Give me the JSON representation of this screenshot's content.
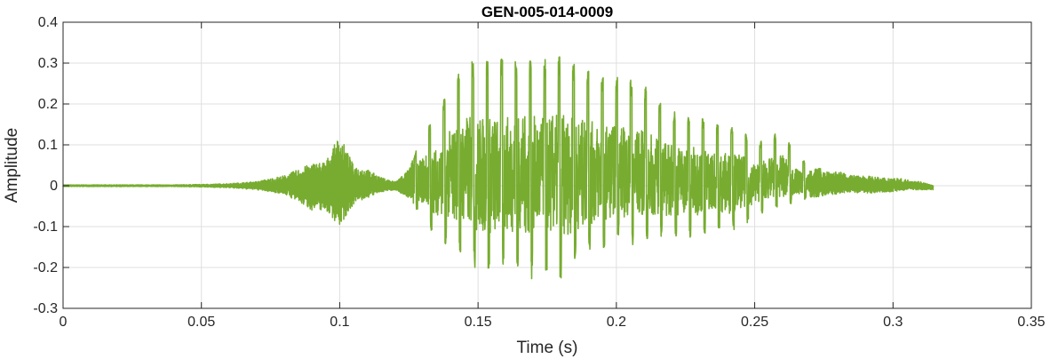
{
  "chart_data": {
    "type": "line",
    "title": "GEN-005-014-0009",
    "xlabel": "Time (s)",
    "ylabel": "Amplitude",
    "xlim": [
      0,
      0.35
    ],
    "ylim": [
      -0.3,
      0.4
    ],
    "xticks": [
      0,
      0.05,
      0.1,
      0.15,
      0.2,
      0.25,
      0.3,
      0.35
    ],
    "xtick_labels": [
      "0",
      "0.05",
      "0.1",
      "0.15",
      "0.2",
      "0.25",
      "0.3",
      "0.35"
    ],
    "yticks": [
      -0.3,
      -0.2,
      -0.1,
      0,
      0.1,
      0.2,
      0.3,
      0.4
    ],
    "ytick_labels": [
      "-0.3",
      "-0.2",
      "-0.1",
      "0",
      "0.1",
      "0.2",
      "0.3",
      "0.4"
    ],
    "grid": true,
    "line_color": "#77ac30",
    "series": [
      {
        "x": [
          0,
          0.01,
          0.02,
          0.03,
          0.04,
          0.05,
          0.06,
          0.07,
          0.08,
          0.085,
          0.09,
          0.095,
          0.1,
          0.105,
          0.11,
          0.115,
          0.12,
          0.125,
          0.13,
          0.135,
          0.14,
          0.145,
          0.15,
          0.155,
          0.16,
          0.165,
          0.17,
          0.175,
          0.18,
          0.185,
          0.19,
          0.195,
          0.2,
          0.205,
          0.21,
          0.215,
          0.22,
          0.225,
          0.23,
          0.235,
          0.24,
          0.245,
          0.25,
          0.255,
          0.26,
          0.265,
          0.27,
          0.275,
          0.28,
          0.285,
          0.29,
          0.295,
          0.3,
          0.305,
          0.31,
          0.3145
        ],
        "upper": [
          0.002,
          0.002,
          0.002,
          0.002,
          0.002,
          0.003,
          0.005,
          0.01,
          0.025,
          0.04,
          0.055,
          0.06,
          0.125,
          0.05,
          0.04,
          0.02,
          0.01,
          0.04,
          0.13,
          0.17,
          0.25,
          0.31,
          0.31,
          0.31,
          0.31,
          0.31,
          0.31,
          0.31,
          0.32,
          0.3,
          0.29,
          0.27,
          0.27,
          0.26,
          0.245,
          0.215,
          0.185,
          0.175,
          0.17,
          0.15,
          0.15,
          0.14,
          0.1,
          0.12,
          0.135,
          0.075,
          0.05,
          0.04,
          0.035,
          0.025,
          0.025,
          0.02,
          0.02,
          0.015,
          0.01,
          0.0
        ],
        "lower": [
          -0.002,
          -0.002,
          -0.002,
          -0.002,
          -0.002,
          -0.003,
          -0.005,
          -0.01,
          -0.02,
          -0.04,
          -0.06,
          -0.06,
          -0.1,
          -0.045,
          -0.03,
          -0.015,
          -0.01,
          -0.03,
          -0.08,
          -0.13,
          -0.15,
          -0.17,
          -0.21,
          -0.22,
          -0.2,
          -0.21,
          -0.23,
          -0.21,
          -0.235,
          -0.2,
          -0.18,
          -0.155,
          -0.13,
          -0.15,
          -0.13,
          -0.14,
          -0.135,
          -0.125,
          -0.13,
          -0.1,
          -0.13,
          -0.1,
          -0.08,
          -0.06,
          -0.05,
          -0.04,
          -0.03,
          -0.025,
          -0.02,
          -0.015,
          -0.02,
          -0.015,
          -0.015,
          -0.01,
          -0.01,
          -0.01
        ]
      }
    ]
  }
}
